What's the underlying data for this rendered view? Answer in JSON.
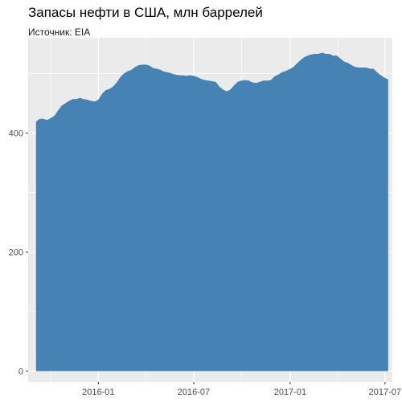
{
  "chart_data": {
    "type": "area",
    "title": "Запасы нефти в США, млн баррелей",
    "subtitle": "Источник: EIA",
    "xlabel": "",
    "ylabel": "",
    "x_ticks": [
      {
        "date": "2016-01-01",
        "label": "2016-01"
      },
      {
        "date": "2016-07-01",
        "label": "2016-07"
      },
      {
        "date": "2017-01-01",
        "label": "2017-01"
      },
      {
        "date": "2017-07-01",
        "label": "2017-07"
      }
    ],
    "y_ticks": [
      0,
      200,
      400
    ],
    "xlim": [
      "2015-08-20",
      "2017-07-15"
    ],
    "ylim": [
      -18,
      560
    ],
    "grid": true,
    "fill_color": "#4682B4",
    "panel_color": "#EBEBEB",
    "x": [
      "2015-09-04",
      "2015-09-11",
      "2015-09-18",
      "2015-09-25",
      "2015-10-02",
      "2015-10-09",
      "2015-10-16",
      "2015-10-23",
      "2015-10-30",
      "2015-11-06",
      "2015-11-13",
      "2015-11-20",
      "2015-11-27",
      "2015-12-04",
      "2015-12-11",
      "2015-12-18",
      "2015-12-25",
      "2016-01-01",
      "2016-01-08",
      "2016-01-15",
      "2016-01-22",
      "2016-01-29",
      "2016-02-05",
      "2016-02-12",
      "2016-02-19",
      "2016-02-26",
      "2016-03-04",
      "2016-03-11",
      "2016-03-18",
      "2016-03-25",
      "2016-04-01",
      "2016-04-08",
      "2016-04-15",
      "2016-04-22",
      "2016-04-29",
      "2016-05-06",
      "2016-05-13",
      "2016-05-20",
      "2016-05-27",
      "2016-06-03",
      "2016-06-10",
      "2016-06-17",
      "2016-06-24",
      "2016-07-01",
      "2016-07-08",
      "2016-07-15",
      "2016-07-22",
      "2016-07-29",
      "2016-08-05",
      "2016-08-12",
      "2016-08-19",
      "2016-08-26",
      "2016-09-02",
      "2016-09-09",
      "2016-09-16",
      "2016-09-23",
      "2016-09-30",
      "2016-10-07",
      "2016-10-14",
      "2016-10-21",
      "2016-10-28",
      "2016-11-04",
      "2016-11-11",
      "2016-11-18",
      "2016-11-25",
      "2016-12-02",
      "2016-12-09",
      "2016-12-16",
      "2016-12-23",
      "2016-12-30",
      "2017-01-06",
      "2017-01-13",
      "2017-01-20",
      "2017-01-27",
      "2017-02-03",
      "2017-02-10",
      "2017-02-17",
      "2017-02-24",
      "2017-03-03",
      "2017-03-10",
      "2017-03-17",
      "2017-03-24",
      "2017-03-31",
      "2017-04-07",
      "2017-04-14",
      "2017-04-21",
      "2017-04-28",
      "2017-05-05",
      "2017-05-12",
      "2017-05-19",
      "2017-05-26",
      "2017-06-02",
      "2017-06-09",
      "2017-06-16",
      "2017-06-23",
      "2017-06-30",
      "2017-07-07"
    ],
    "values": [
      419,
      424,
      424,
      422,
      425,
      429,
      438,
      446,
      450,
      454,
      457,
      457,
      459,
      457,
      456,
      454,
      453,
      456,
      466,
      472,
      474,
      478,
      485,
      494,
      500,
      504,
      506,
      511,
      514,
      515,
      515,
      513,
      509,
      508,
      506,
      503,
      502,
      500,
      498,
      497,
      497,
      496,
      497,
      496,
      494,
      491,
      489,
      488,
      487,
      486,
      478,
      473,
      470,
      473,
      480,
      486,
      488,
      489,
      488,
      485,
      484,
      486,
      488,
      488,
      489,
      495,
      498,
      502,
      504,
      507,
      510,
      516,
      522,
      527,
      530,
      532,
      533,
      533,
      535,
      533,
      533,
      530,
      530,
      525,
      520,
      518,
      514,
      511,
      510,
      510,
      510,
      508,
      508,
      502,
      497,
      493,
      490
    ]
  }
}
